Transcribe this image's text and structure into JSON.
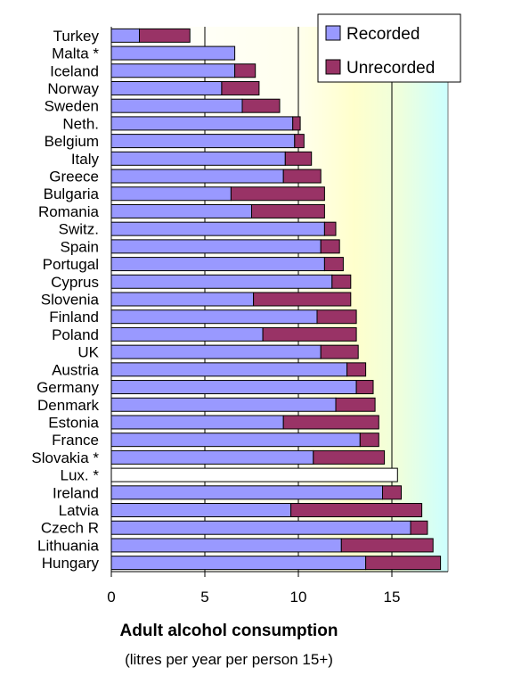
{
  "chart_data": {
    "type": "bar",
    "orientation": "horizontal",
    "stacked": true,
    "categories": [
      "Turkey",
      "Malta *",
      "Iceland",
      "Norway",
      "Sweden",
      "Neth.",
      "Belgium",
      "Italy",
      "Greece",
      "Bulgaria",
      "Romania",
      "Switz.",
      "Spain",
      "Portugal",
      "Cyprus",
      "Slovenia",
      "Finland",
      "Poland",
      "UK",
      "Austria",
      "Germany",
      "Denmark",
      "Estonia",
      "France",
      "Slovakia *",
      "Lux. *",
      "Ireland",
      "Latvia",
      "Czech R",
      "Lithuania",
      "Hungary"
    ],
    "series": [
      {
        "name": "Recorded",
        "color": "#9999ff",
        "values": [
          1.5,
          6.6,
          6.6,
          5.9,
          7.0,
          9.7,
          9.8,
          9.3,
          9.2,
          6.4,
          7.5,
          11.4,
          11.2,
          11.4,
          11.8,
          7.6,
          11.0,
          8.1,
          11.2,
          12.6,
          13.1,
          12.0,
          9.2,
          13.3,
          10.8,
          15.3,
          14.5,
          9.6,
          16.0,
          12.3,
          13.6
        ]
      },
      {
        "name": "Unrecorded",
        "color": "#993366",
        "values": [
          2.7,
          0.0,
          1.1,
          2.0,
          2.0,
          0.4,
          0.5,
          1.4,
          2.0,
          5.0,
          3.9,
          0.6,
          1.0,
          1.0,
          1.0,
          5.2,
          2.1,
          5.0,
          2.0,
          1.0,
          0.9,
          2.1,
          5.1,
          1.0,
          3.8,
          0.0,
          1.0,
          7.0,
          0.9,
          4.9,
          4.0
        ]
      }
    ],
    "special_bars": [
      {
        "category": "Lux. *",
        "fill": "#ffffff",
        "recorded_only": true
      }
    ],
    "xlim": [
      0,
      18
    ],
    "x_ticks": [
      0,
      5,
      10,
      15
    ],
    "xlabel": "Adult alcohol consumption",
    "xlabel_sub": "(litres per year per person 15+)",
    "legend_position": "top-right",
    "grid": "vertical at 5, 10, 15",
    "background_colors": {
      "bands": [
        "#ffffff",
        "#ffffcc",
        "#ccffff"
      ]
    }
  },
  "legend": {
    "recorded": "Recorded",
    "unrecorded": "Unrecorded"
  },
  "axis": {
    "xlabel": "Adult alcohol consumption",
    "xlabel_sub": "(litres per year per person 15+)"
  }
}
